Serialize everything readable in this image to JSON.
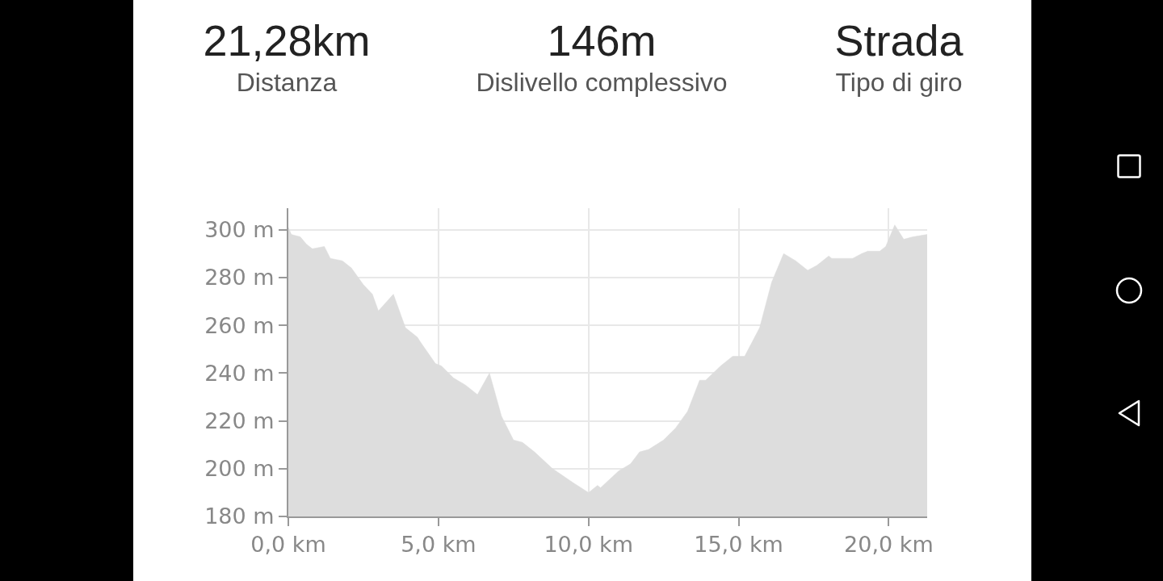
{
  "chart_data": {
    "type": "area",
    "annotations": [
      "21,28km",
      "Distanza",
      "146m",
      "Dislivello complessivo",
      "Strada",
      "Tipo di giro"
    ],
    "x": [
      0,
      0.1,
      0.4,
      0.6,
      0.8,
      1.2,
      1.4,
      1.8,
      2.1,
      2.5,
      2.8,
      3.0,
      3.5,
      3.9,
      4.3,
      4.4,
      4.9,
      5.1,
      5.5,
      5.9,
      6.3,
      6.7,
      7.1,
      7.5,
      7.8,
      8.2,
      8.8,
      9.5,
      10.0,
      10.1,
      10.3,
      10.4,
      11.0,
      11.4,
      11.7,
      12.0,
      12.5,
      12.9,
      13.3,
      13.7,
      13.9,
      14.4,
      14.8,
      15.2,
      15.7,
      16.1,
      16.5,
      16.9,
      17.3,
      17.6,
      18.0,
      18.1,
      18.4,
      18.8,
      19.1,
      19.3,
      19.7,
      19.9,
      20.2,
      20.5,
      20.8,
      21.28
    ],
    "values": [
      301,
      298,
      297,
      294,
      292,
      293,
      288,
      287,
      284,
      277,
      273,
      266,
      273,
      259,
      255,
      253,
      244,
      243,
      238,
      235,
      231,
      240,
      222,
      212,
      211,
      207,
      200,
      194,
      190,
      191,
      193,
      192,
      199,
      202,
      207,
      208,
      212,
      217,
      224,
      237,
      237,
      243,
      247,
      247,
      259,
      278,
      290,
      287,
      283,
      285,
      289,
      288,
      288,
      288,
      290,
      291,
      291,
      293,
      302,
      296,
      297,
      298
    ],
    "color": "#dddddd",
    "grid": true,
    "xlim": [
      0,
      21.28
    ],
    "ylim": [
      180,
      309
    ],
    "xticks": [
      {
        "value": 0,
        "label": "0,0 km"
      },
      {
        "value": 5,
        "label": "5,0 km"
      },
      {
        "value": 10,
        "label": "10,0 km"
      },
      {
        "value": 15,
        "label": "15,0 km"
      },
      {
        "value": 20,
        "label": "20,0 km"
      }
    ],
    "yticks": [
      {
        "value": 180,
        "label": "180 m"
      },
      {
        "value": 200,
        "label": "200 m"
      },
      {
        "value": 220,
        "label": "220 m"
      },
      {
        "value": 240,
        "label": "240 m"
      },
      {
        "value": 260,
        "label": "260 m"
      },
      {
        "value": 280,
        "label": "280 m"
      },
      {
        "value": 300,
        "label": "300 m"
      }
    ]
  }
}
